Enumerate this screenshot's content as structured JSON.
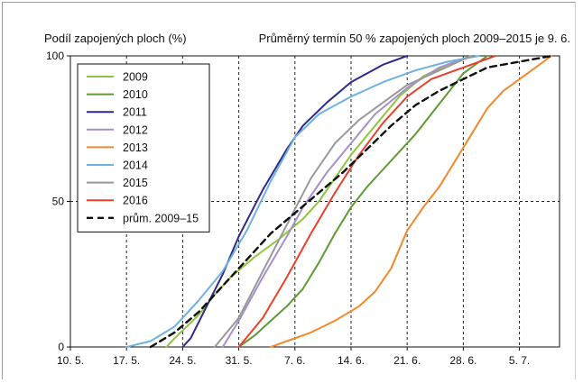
{
  "chart_data": {
    "type": "line",
    "ylabel": "Podíl zapojených ploch (%)",
    "subtitle": "Průměrný termín 50 % zapojených ploch 2009–2015 je 9. 6.",
    "x_ticks": [
      "10. 5.",
      "17. 5.",
      "24. 5.",
      "31. 5.",
      "7. 6.",
      "14. 6.",
      "21. 6.",
      "28. 6.",
      "5. 7."
    ],
    "y_ticks": [
      "0",
      "50",
      "100"
    ],
    "xlim": [
      "10. 5.",
      "10. 7."
    ],
    "ylim": [
      0,
      100
    ],
    "grid": "dashed",
    "legend_position": "top-left",
    "x_unit": "date (day.month.)",
    "series": [
      {
        "name": "2009",
        "color": "#8dc63f",
        "dash": false,
        "points": [
          [
            "22. 5.",
            0
          ],
          [
            "23. 5.",
            3
          ],
          [
            "26. 5.",
            11
          ],
          [
            "28. 5.",
            18
          ],
          [
            "30. 5.",
            24
          ],
          [
            "2. 6.",
            31
          ],
          [
            "5. 6.",
            37
          ],
          [
            "8. 6.",
            44
          ],
          [
            "10. 6.",
            50
          ],
          [
            "12. 6.",
            58
          ],
          [
            "14. 6.",
            66
          ],
          [
            "17. 6.",
            76
          ],
          [
            "20. 6.",
            86
          ],
          [
            "23. 6.",
            93
          ],
          [
            "26. 6.",
            97
          ],
          [
            "29. 6.",
            100
          ]
        ]
      },
      {
        "name": "2010",
        "color": "#5e9b32",
        "dash": false,
        "points": [
          [
            "31. 5.",
            0
          ],
          [
            "2. 6.",
            4
          ],
          [
            "4. 6.",
            9
          ],
          [
            "6. 6.",
            14
          ],
          [
            "8. 6.",
            20
          ],
          [
            "10. 6.",
            29
          ],
          [
            "12. 6.",
            39
          ],
          [
            "14. 6.",
            48
          ],
          [
            "16. 6.",
            55
          ],
          [
            "18. 6.",
            61
          ],
          [
            "20. 6.",
            67
          ],
          [
            "22. 6.",
            73
          ],
          [
            "24. 6.",
            80
          ],
          [
            "26. 6.",
            87
          ],
          [
            "28. 6.",
            94
          ],
          [
            "1. 7.",
            100
          ]
        ]
      },
      {
        "name": "2011",
        "color": "#2e2a8c",
        "dash": false,
        "points": [
          [
            "24. 5.",
            0
          ],
          [
            "25. 5.",
            3
          ],
          [
            "27. 5.",
            14
          ],
          [
            "29. 5.",
            25
          ],
          [
            "31. 5.",
            38
          ],
          [
            "3. 6.",
            54
          ],
          [
            "6. 6.",
            68
          ],
          [
            "8. 6.",
            76
          ],
          [
            "11. 6.",
            84
          ],
          [
            "14. 6.",
            91
          ],
          [
            "18. 6.",
            97
          ],
          [
            "21. 6.",
            100
          ]
        ]
      },
      {
        "name": "2012",
        "color": "#a68fcc",
        "dash": false,
        "points": [
          [
            "29. 5.",
            0
          ],
          [
            "31. 5.",
            9
          ],
          [
            "3. 6.",
            24
          ],
          [
            "6. 6.",
            38
          ],
          [
            "8. 6.",
            48
          ],
          [
            "11. 6.",
            60
          ],
          [
            "14. 6.",
            70
          ],
          [
            "17. 6.",
            80
          ],
          [
            "21. 6.",
            89
          ],
          [
            "25. 6.",
            96
          ],
          [
            "29. 6.",
            100
          ]
        ]
      },
      {
        "name": "2013",
        "color": "#f08a2c",
        "dash": false,
        "points": [
          [
            "4. 6.",
            0
          ],
          [
            "6. 6.",
            2
          ],
          [
            "9. 6.",
            5
          ],
          [
            "12. 6.",
            9
          ],
          [
            "15. 6.",
            14
          ],
          [
            "17. 6.",
            19
          ],
          [
            "19. 6.",
            27
          ],
          [
            "21. 6.",
            40
          ],
          [
            "23. 6.",
            48
          ],
          [
            "25. 6.",
            55
          ],
          [
            "27. 6.",
            64
          ],
          [
            "29. 6.",
            73
          ],
          [
            "1. 7.",
            82
          ],
          [
            "3. 7.",
            88
          ],
          [
            "6. 7.",
            94
          ],
          [
            "9. 7.",
            100
          ]
        ]
      },
      {
        "name": "2014",
        "color": "#6fb1e0",
        "dash": false,
        "points": [
          [
            "17. 5.",
            0
          ],
          [
            "20. 5.",
            2
          ],
          [
            "23. 5.",
            7
          ],
          [
            "26. 5.",
            16
          ],
          [
            "29. 5.",
            26
          ],
          [
            "1. 6.",
            40
          ],
          [
            "4. 6.",
            57
          ],
          [
            "7. 6.",
            72
          ],
          [
            "10. 6.",
            80
          ],
          [
            "14. 6.",
            86
          ],
          [
            "18. 6.",
            91
          ],
          [
            "22. 6.",
            95
          ],
          [
            "26. 6.",
            98
          ],
          [
            "30. 6.",
            100
          ]
        ]
      },
      {
        "name": "2015",
        "color": "#999999",
        "dash": false,
        "points": [
          [
            "28. 5.",
            0
          ],
          [
            "31. 5.",
            10
          ],
          [
            "3. 6.",
            26
          ],
          [
            "6. 6.",
            42
          ],
          [
            "9. 6.",
            58
          ],
          [
            "12. 6.",
            70
          ],
          [
            "15. 6.",
            78
          ],
          [
            "18. 6.",
            84
          ],
          [
            "21. 6.",
            90
          ],
          [
            "25. 6.",
            95
          ],
          [
            "29. 6.",
            100
          ]
        ]
      },
      {
        "name": "2016",
        "color": "#e8402a",
        "dash": false,
        "points": [
          [
            "31. 5.",
            0
          ],
          [
            "3. 6.",
            10
          ],
          [
            "6. 6.",
            24
          ],
          [
            "9. 6.",
            39
          ],
          [
            "12. 6.",
            53
          ],
          [
            "15. 6.",
            66
          ],
          [
            "18. 6.",
            77
          ],
          [
            "21. 6.",
            86
          ],
          [
            "24. 6.",
            92
          ],
          [
            "28. 6.",
            96
          ],
          [
            "2. 7.",
            100
          ]
        ]
      },
      {
        "name": "prům. 2009–15",
        "color": "#111111",
        "dash": true,
        "points": [
          [
            "20. 5.",
            0
          ],
          [
            "23. 5.",
            5
          ],
          [
            "26. 5.",
            12
          ],
          [
            "29. 5.",
            21
          ],
          [
            "1. 6.",
            30
          ],
          [
            "4. 6.",
            39
          ],
          [
            "7. 6.",
            46
          ],
          [
            "10. 6.",
            53
          ],
          [
            "13. 6.",
            60
          ],
          [
            "16. 6.",
            68
          ],
          [
            "19. 6.",
            76
          ],
          [
            "22. 6.",
            83
          ],
          [
            "25. 6.",
            88
          ],
          [
            "28. 6.",
            92
          ],
          [
            "1. 7.",
            96
          ],
          [
            "5. 7.",
            98
          ],
          [
            "9. 7.",
            100
          ]
        ]
      }
    ]
  }
}
